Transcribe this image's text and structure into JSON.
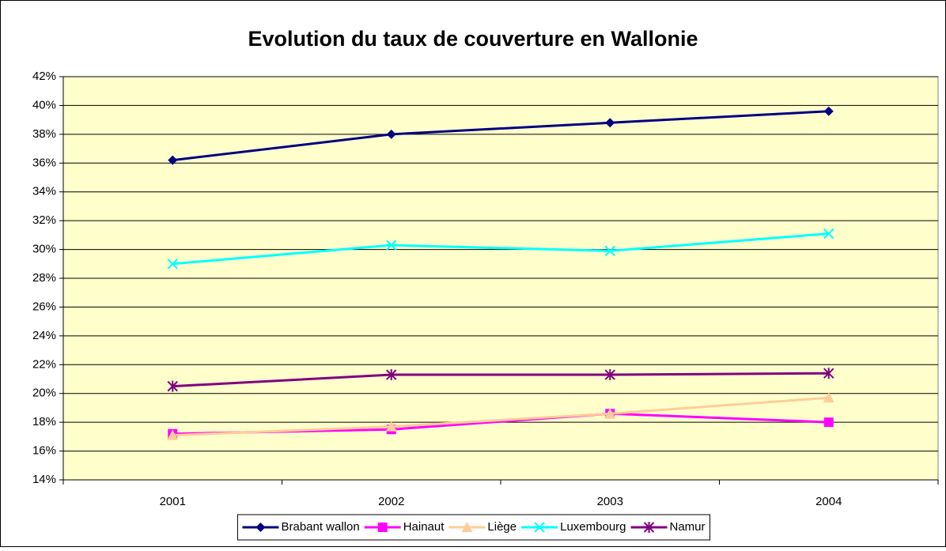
{
  "chart_data": {
    "type": "line",
    "title": "Evolution du taux de couverture en Wallonie",
    "categories": [
      "2001",
      "2002",
      "2003",
      "2004"
    ],
    "series": [
      {
        "name": "Brabant wallon",
        "color": "#000080",
        "marker": "diamond",
        "values": [
          36.2,
          38.0,
          38.8,
          39.6
        ]
      },
      {
        "name": "Hainaut",
        "color": "#ff00ff",
        "marker": "square",
        "values": [
          17.2,
          17.5,
          18.6,
          18.0
        ]
      },
      {
        "name": "Liège",
        "color": "#ffcc99",
        "marker": "triangle",
        "values": [
          17.1,
          17.7,
          18.6,
          19.7
        ]
      },
      {
        "name": "Luxembourg",
        "color": "#00ffff",
        "marker": "x",
        "values": [
          29.0,
          30.3,
          29.9,
          31.1
        ]
      },
      {
        "name": "Namur",
        "color": "#800080",
        "marker": "star",
        "values": [
          20.5,
          21.3,
          21.3,
          21.4
        ]
      }
    ],
    "ylim": [
      14,
      42
    ],
    "yticks": [
      {
        "value": 14,
        "label": "14%"
      },
      {
        "value": 16,
        "label": "16%"
      },
      {
        "value": 18,
        "label": "18%"
      },
      {
        "value": 20,
        "label": "20%"
      },
      {
        "value": 22,
        "label": "22%"
      },
      {
        "value": 24,
        "label": "24%"
      },
      {
        "value": 26,
        "label": "26%"
      },
      {
        "value": 28,
        "label": "28%"
      },
      {
        "value": 30,
        "label": "30%"
      },
      {
        "value": 32,
        "label": "32%"
      },
      {
        "value": 34,
        "label": "34%"
      },
      {
        "value": 36,
        "label": "36%"
      },
      {
        "value": 38,
        "label": "38%"
      },
      {
        "value": 40,
        "label": "40%"
      },
      {
        "value": 42,
        "label": "42%"
      }
    ],
    "grid": true,
    "legend": "bottom",
    "plot_background": "#ffffcc"
  }
}
